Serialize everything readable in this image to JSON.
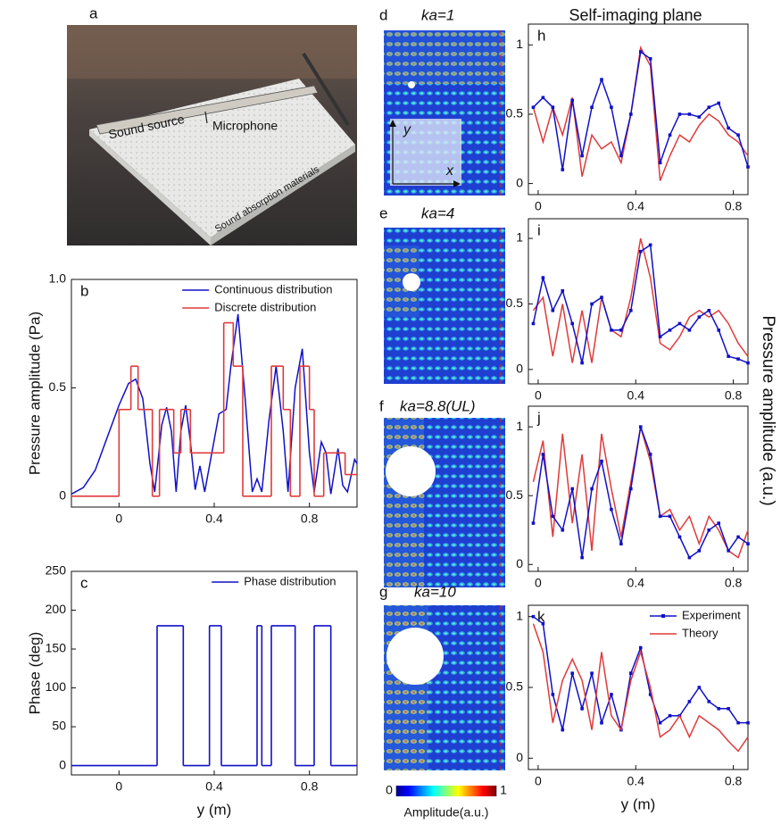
{
  "photo": {
    "panel": "a",
    "labels": [
      "Sound source",
      "Microphone",
      "Sound absorption materials"
    ]
  },
  "maps": {
    "panels": [
      {
        "panel": "d",
        "label": "ka=1",
        "inset_x": "x",
        "inset_y": "y"
      },
      {
        "panel": "e",
        "label": "ka=4"
      },
      {
        "panel": "f",
        "label": "ka=8.8(UL)"
      },
      {
        "panel": "g",
        "label": "ka=10"
      }
    ],
    "colorbar": {
      "ticks": [
        0,
        1
      ],
      "label": "Amplitude(a.u.)"
    }
  },
  "shared": {
    "title": "Self-imaging plane",
    "ylabel": "Pressure amplitude (a.u.)"
  },
  "chart_data": [
    {
      "type": "line",
      "panel": "b",
      "ylabel": "Pressure amplitude (Pa)",
      "xlim": [
        -0.2,
        1.0
      ],
      "xticks": [
        0,
        0.4,
        0.8
      ],
      "ylim": [
        -0.05,
        1.0
      ],
      "yticks": [
        0,
        0.5,
        {
          "value": 1,
          "label": "1.0"
        }
      ],
      "legend": "upper right",
      "series": [
        {
          "name": "Continuous distribution",
          "color": "#1010c8",
          "x": [
            -0.2,
            -0.15,
            -0.1,
            -0.05,
            0,
            0.04,
            0.07,
            0.1,
            0.13,
            0.15,
            0.18,
            0.2,
            0.22,
            0.24,
            0.26,
            0.28,
            0.3,
            0.32,
            0.34,
            0.36,
            0.39,
            0.42,
            0.45,
            0.47,
            0.5,
            0.53,
            0.56,
            0.58,
            0.6,
            0.63,
            0.66,
            0.69,
            0.71,
            0.74,
            0.77,
            0.8,
            0.82,
            0.85,
            0.87,
            0.89,
            0.92,
            0.94,
            0.96,
            0.99,
            1.0
          ],
          "values": [
            0.01,
            0.04,
            0.12,
            0.27,
            0.42,
            0.52,
            0.54,
            0.45,
            0.15,
            0.02,
            0.33,
            0.41,
            0.3,
            0.02,
            0.3,
            0.42,
            0.25,
            0.03,
            0.14,
            0.02,
            0.2,
            0.38,
            0.4,
            0.6,
            0.84,
            0.45,
            0.02,
            0.08,
            0.02,
            0.35,
            0.6,
            0.3,
            0.02,
            0.5,
            0.68,
            0.2,
            0.02,
            0.25,
            0.2,
            0.01,
            0.22,
            0.05,
            0.02,
            0.17,
            0.15
          ]
        },
        {
          "name": "Discrete distribution",
          "color": "#e03a3a",
          "step": true,
          "x": [
            -0.2,
            0,
            0.05,
            0.08,
            0.14,
            0.17,
            0.23,
            0.26,
            0.3,
            0.44,
            0.48,
            0.52,
            0.64,
            0.69,
            0.72,
            0.76,
            0.8,
            0.82,
            0.86,
            0.95
          ],
          "values": [
            0,
            0.4,
            0.6,
            0.4,
            0,
            0.4,
            0.2,
            0.4,
            0.2,
            0.8,
            0.6,
            0,
            0.6,
            0.4,
            0,
            0.6,
            0.4,
            0,
            0.2,
            0.1
          ]
        }
      ]
    },
    {
      "type": "line",
      "panel": "c",
      "ylabel": "Phase (deg)",
      "xlabel": "y (m)",
      "xlim": [
        -0.2,
        1.0
      ],
      "xticks": [
        0,
        0.4,
        0.8
      ],
      "ylim": [
        -12,
        250
      ],
      "yticks": [
        0,
        50,
        100,
        150,
        200,
        250
      ],
      "legend": "upper right",
      "series": [
        {
          "name": "Phase distribution",
          "color": "#1010c8",
          "step": true,
          "x": [
            -0.2,
            0.16,
            0.27,
            0.38,
            0.43,
            0.58,
            0.6,
            0.64,
            0.74,
            0.82,
            0.89
          ],
          "values": [
            0,
            180,
            0,
            180,
            0,
            180,
            0,
            180,
            0,
            180,
            0
          ]
        }
      ]
    },
    {
      "type": "line",
      "panel": "h",
      "xlim": [
        -0.04,
        0.86
      ],
      "xticks": [
        0,
        0.4,
        0.8
      ],
      "ylim": [
        -0.08,
        1.15
      ],
      "yticks": [
        0,
        0.5,
        1
      ],
      "series": [
        {
          "color": "#e03a3a",
          "x": [
            -0.02,
            0.02,
            0.06,
            0.1,
            0.14,
            0.18,
            0.22,
            0.26,
            0.3,
            0.34,
            0.38,
            0.42,
            0.46,
            0.5,
            0.54,
            0.58,
            0.62,
            0.66,
            0.7,
            0.74,
            0.78,
            0.82,
            0.86
          ],
          "values": [
            0.55,
            0.3,
            0.55,
            0.35,
            0.62,
            0.05,
            0.35,
            0.25,
            0.3,
            0.15,
            0.5,
            0.98,
            0.85,
            0.02,
            0.2,
            0.35,
            0.3,
            0.42,
            0.5,
            0.45,
            0.35,
            0.3,
            0.2
          ]
        },
        {
          "color": "#1010c8",
          "markers": true,
          "x": [
            -0.02,
            0.02,
            0.06,
            0.1,
            0.14,
            0.18,
            0.22,
            0.26,
            0.3,
            0.34,
            0.38,
            0.42,
            0.46,
            0.5,
            0.54,
            0.58,
            0.62,
            0.66,
            0.7,
            0.74,
            0.78,
            0.82,
            0.86
          ],
          "values": [
            0.55,
            0.62,
            0.55,
            0.1,
            0.6,
            0.2,
            0.55,
            0.75,
            0.55,
            0.2,
            0.5,
            0.95,
            0.9,
            0.15,
            0.35,
            0.5,
            0.5,
            0.48,
            0.55,
            0.58,
            0.4,
            0.35,
            0.12
          ]
        }
      ]
    },
    {
      "type": "line",
      "panel": "i",
      "xlim": [
        -0.04,
        0.86
      ],
      "xticks": [
        0,
        0.4,
        0.8
      ],
      "ylim": [
        -0.11,
        1.15
      ],
      "yticks": [
        0,
        0.5,
        1
      ],
      "series": [
        {
          "color": "#e03a3a",
          "x": [
            -0.02,
            0.02,
            0.06,
            0.1,
            0.14,
            0.18,
            0.22,
            0.26,
            0.3,
            0.34,
            0.38,
            0.42,
            0.46,
            0.5,
            0.54,
            0.58,
            0.62,
            0.66,
            0.7,
            0.74,
            0.78,
            0.82,
            0.86
          ],
          "values": [
            0.45,
            0.55,
            0.1,
            0.5,
            0.05,
            0.45,
            0.05,
            0.55,
            0.3,
            0.25,
            0.55,
            1.0,
            0.7,
            0.2,
            0.15,
            0.25,
            0.4,
            0.45,
            0.4,
            0.45,
            0.35,
            0.2,
            0.1
          ]
        },
        {
          "color": "#1010c8",
          "markers": true,
          "x": [
            -0.02,
            0.02,
            0.06,
            0.1,
            0.14,
            0.18,
            0.22,
            0.26,
            0.3,
            0.34,
            0.38,
            0.42,
            0.46,
            0.5,
            0.54,
            0.58,
            0.62,
            0.66,
            0.7,
            0.74,
            0.78,
            0.82,
            0.86
          ],
          "values": [
            0.35,
            0.7,
            0.45,
            0.6,
            0.35,
            0.05,
            0.5,
            0.55,
            0.3,
            0.3,
            0.45,
            0.9,
            0.95,
            0.25,
            0.3,
            0.35,
            0.3,
            0.4,
            0.45,
            0.3,
            0.1,
            0.08,
            0.05
          ]
        }
      ]
    },
    {
      "type": "line",
      "panel": "j",
      "xlim": [
        -0.04,
        0.86
      ],
      "xticks": [
        0,
        0.4,
        0.8
      ],
      "ylim": [
        -0.05,
        1.15
      ],
      "yticks": [
        0,
        0.5,
        1
      ],
      "series": [
        {
          "color": "#e03a3a",
          "x": [
            -0.02,
            0.02,
            0.06,
            0.1,
            0.14,
            0.18,
            0.22,
            0.26,
            0.3,
            0.34,
            0.38,
            0.42,
            0.46,
            0.5,
            0.54,
            0.58,
            0.62,
            0.66,
            0.7,
            0.74,
            0.78,
            0.82,
            0.86
          ],
          "values": [
            0.6,
            0.9,
            0.2,
            0.95,
            0.3,
            0.8,
            0.1,
            0.95,
            0.55,
            0.2,
            0.6,
            1.0,
            0.75,
            0.35,
            0.4,
            0.25,
            0.35,
            0.15,
            0.35,
            0.25,
            0.1,
            0.05,
            0.25
          ]
        },
        {
          "color": "#1010c8",
          "markers": true,
          "x": [
            -0.02,
            0.02,
            0.06,
            0.1,
            0.14,
            0.18,
            0.22,
            0.26,
            0.3,
            0.34,
            0.38,
            0.42,
            0.46,
            0.5,
            0.54,
            0.58,
            0.62,
            0.66,
            0.7,
            0.74,
            0.78,
            0.82,
            0.86
          ],
          "values": [
            0.3,
            0.8,
            0.35,
            0.25,
            0.55,
            0.05,
            0.55,
            0.75,
            0.4,
            0.15,
            0.55,
            1.0,
            0.8,
            0.35,
            0.35,
            0.2,
            0.05,
            0.1,
            0.25,
            0.3,
            0.1,
            0.2,
            0.15
          ]
        }
      ]
    },
    {
      "type": "line",
      "panel": "k",
      "xlabel": "y (m)",
      "xlim": [
        -0.04,
        0.86
      ],
      "xticks": [
        0,
        0.4,
        0.8
      ],
      "ylim": [
        -0.08,
        1.08
      ],
      "yticks": [
        0,
        0.5,
        1
      ],
      "legend": "upper right",
      "series": [
        {
          "name": "Experiment",
          "color": "#1010c8",
          "markers": true,
          "x": [
            -0.02,
            0.02,
            0.06,
            0.1,
            0.14,
            0.18,
            0.22,
            0.26,
            0.3,
            0.34,
            0.38,
            0.42,
            0.46,
            0.5,
            0.54,
            0.58,
            0.62,
            0.66,
            0.7,
            0.74,
            0.78,
            0.82,
            0.86
          ],
          "values": [
            1.0,
            0.95,
            0.45,
            0.2,
            0.6,
            0.35,
            0.6,
            0.25,
            0.45,
            0.2,
            0.6,
            0.78,
            0.45,
            0.25,
            0.3,
            0.3,
            0.4,
            0.5,
            0.4,
            0.35,
            0.35,
            0.25,
            0.25
          ]
        },
        {
          "name": "Theory",
          "color": "#e03a3a",
          "x": [
            -0.02,
            0.02,
            0.06,
            0.1,
            0.14,
            0.18,
            0.22,
            0.26,
            0.3,
            0.34,
            0.38,
            0.42,
            0.46,
            0.5,
            0.54,
            0.58,
            0.62,
            0.66,
            0.7,
            0.74,
            0.78,
            0.82,
            0.86
          ],
          "values": [
            0.95,
            0.75,
            0.25,
            0.55,
            0.7,
            0.55,
            0.2,
            0.75,
            0.3,
            0.2,
            0.55,
            0.75,
            0.5,
            0.15,
            0.2,
            0.3,
            0.15,
            0.3,
            0.25,
            0.2,
            0.12,
            0.05,
            0.15
          ]
        }
      ]
    }
  ]
}
